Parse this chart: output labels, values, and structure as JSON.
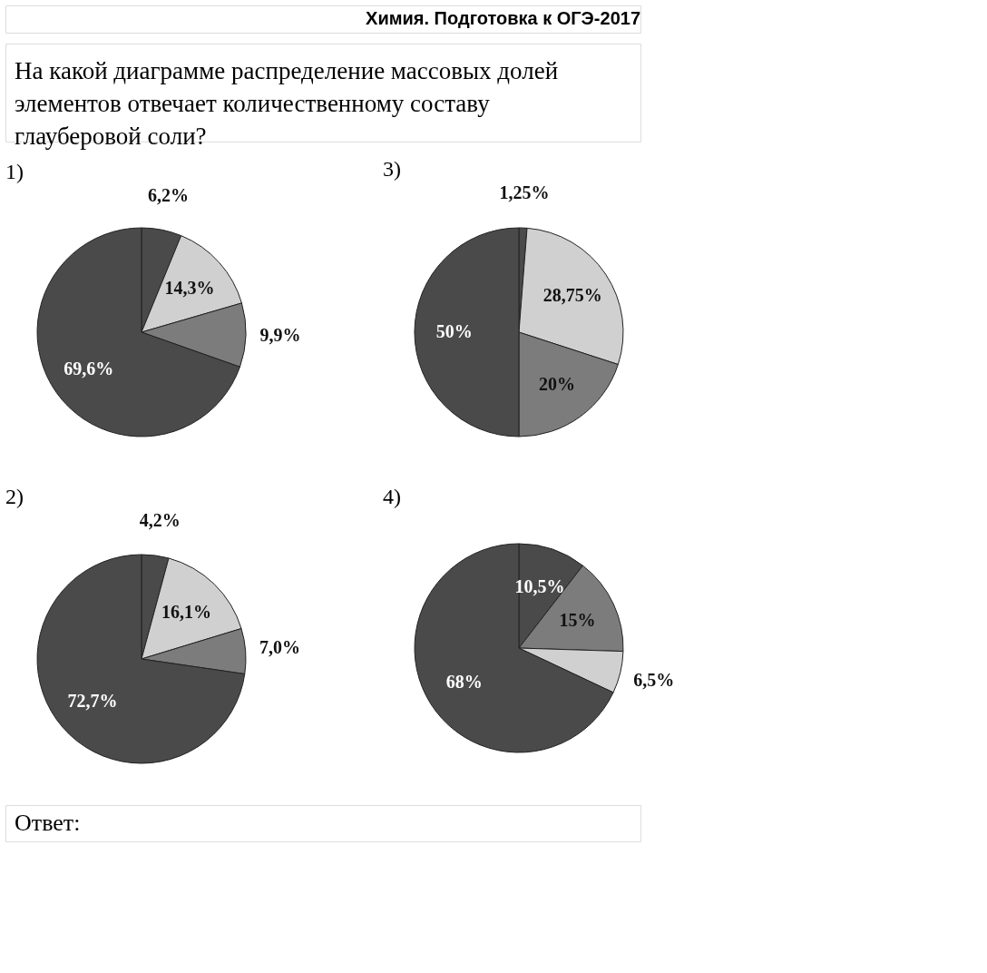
{
  "chart_data": [
    {
      "type": "other",
      "title": "На какой диаграмме распределение массовых долей элементов отвечает количественному составу глауберовой соли?",
      "annotations": [
        "Химия. Подготовка к ОГЭ-2017",
        "Ответ:"
      ]
    },
    {
      "type": "pie",
      "title": "1)",
      "categories": [
        null,
        null,
        null,
        null
      ],
      "values": [
        6.2,
        14.3,
        9.9,
        69.6
      ],
      "colors": [
        "#4a4a4a",
        "#d0d0d0",
        "#7c7c7c",
        "#4a4a4a"
      ],
      "value_labels": [
        "6,2%",
        "14,3%",
        "9,9%",
        "69,6%"
      ]
    },
    {
      "type": "pie",
      "title": "2)",
      "categories": [
        null,
        null,
        null,
        null
      ],
      "values": [
        4.2,
        16.1,
        7.0,
        72.7
      ],
      "colors": [
        "#4a4a4a",
        "#d0d0d0",
        "#7c7c7c",
        "#4a4a4a"
      ],
      "value_labels": [
        "4,2%",
        "16,1%",
        "7,0%",
        "72,7%"
      ]
    },
    {
      "type": "pie",
      "title": "3)",
      "categories": [
        null,
        null,
        null,
        null
      ],
      "values": [
        1.25,
        28.75,
        20,
        50
      ],
      "colors": [
        "#4a4a4a",
        "#d0d0d0",
        "#7c7c7c",
        "#4a4a4a"
      ],
      "value_labels": [
        "1,25%",
        "28,75%",
        "20%",
        "50%"
      ]
    },
    {
      "type": "pie",
      "title": "4)",
      "categories": [
        null,
        null,
        null,
        null
      ],
      "values": [
        10.5,
        15,
        6.5,
        68
      ],
      "colors": [
        "#4a4a4a",
        "#7c7c7c",
        "#d0d0d0",
        "#4a4a4a"
      ],
      "value_labels": [
        "10,5%",
        "15%",
        "6,5%",
        "68%"
      ]
    }
  ]
}
